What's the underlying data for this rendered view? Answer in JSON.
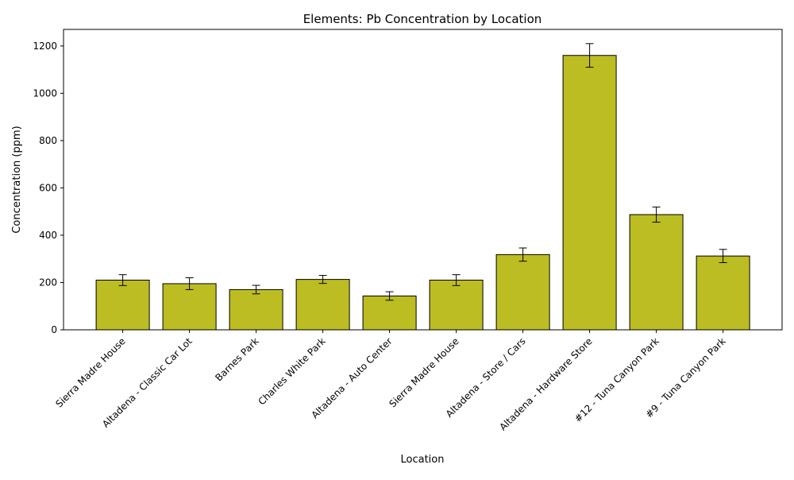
{
  "chart_data": {
    "type": "bar",
    "title": "Elements: Pb Concentration by Location",
    "xlabel": "Location",
    "ylabel": "Concentration (ppm)",
    "ylim": [
      0,
      1270
    ],
    "yticks": [
      0,
      200,
      400,
      600,
      800,
      1000,
      1200
    ],
    "grid": false,
    "legend": "none",
    "bar_color": "#bcbd22",
    "edge_color": "#000000",
    "categories": [
      "Sierra Madre House",
      "Altadena - Classic Car Lot",
      "Barnes Park",
      "Charles White Park",
      "Altadena - Auto Center",
      "Sierra Madre House",
      "Altadena - Store / Cars",
      "Altadena - Hardware Store",
      "#12 - Tuna Canyon Park",
      "#9 - Tuna Canyon Park"
    ],
    "values": [
      210,
      195,
      170,
      213,
      143,
      210,
      318,
      1160,
      487,
      312
    ],
    "errors": [
      23,
      25,
      18,
      17,
      18,
      23,
      28,
      50,
      32,
      28
    ]
  }
}
